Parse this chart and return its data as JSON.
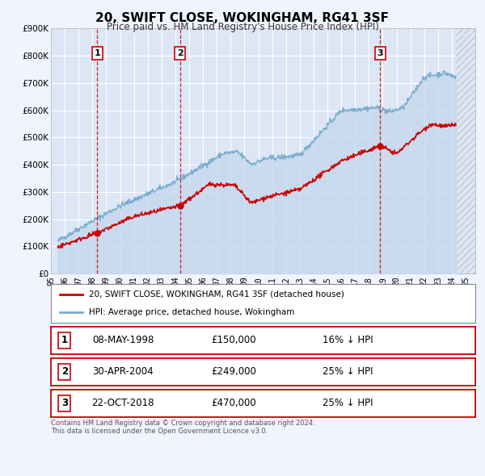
{
  "title": "20, SWIFT CLOSE, WOKINGHAM, RG41 3SF",
  "subtitle": "Price paid vs. HM Land Registry's House Price Index (HPI)",
  "ylim": [
    0,
    900000
  ],
  "yticks": [
    0,
    100000,
    200000,
    300000,
    400000,
    500000,
    600000,
    700000,
    800000,
    900000
  ],
  "ytick_labels": [
    "£0",
    "£100K",
    "£200K",
    "£300K",
    "£400K",
    "£500K",
    "£600K",
    "£700K",
    "£800K",
    "£900K"
  ],
  "xlim_start": 1995.3,
  "xlim_end": 2025.7,
  "xticks": [
    1995,
    1996,
    1997,
    1998,
    1999,
    2000,
    2001,
    2002,
    2003,
    2004,
    2005,
    2006,
    2007,
    2008,
    2009,
    2010,
    2011,
    2012,
    2013,
    2014,
    2015,
    2016,
    2017,
    2018,
    2019,
    2020,
    2021,
    2022,
    2023,
    2024,
    2025
  ],
  "xtick_labels": [
    "95",
    "96",
    "97",
    "98",
    "99",
    "00",
    "01",
    "02",
    "03",
    "04",
    "05",
    "06",
    "07",
    "08",
    "09",
    "10",
    "11",
    "12",
    "13",
    "14",
    "15",
    "16",
    "17",
    "18",
    "19",
    "20",
    "21",
    "22",
    "23",
    "24",
    "25"
  ],
  "background_color": "#f0f4ff",
  "plot_bg_color": "#dce6f5",
  "grid_color": "#ffffff",
  "red_line_color": "#cc0000",
  "blue_line_color": "#7aabcc",
  "blue_fill_color": "#c5d8ee",
  "hatch_color": "#c0c8d8",
  "sale_points": [
    {
      "year": 1998.36,
      "price": 150000,
      "label": "1"
    },
    {
      "year": 2004.33,
      "price": 249000,
      "label": "2"
    },
    {
      "year": 2018.81,
      "price": 470000,
      "label": "3"
    }
  ],
  "table_rows": [
    {
      "num": "1",
      "date": "08-MAY-1998",
      "price": "£150,000",
      "hpi": "16% ↓ HPI"
    },
    {
      "num": "2",
      "date": "30-APR-2004",
      "price": "£249,000",
      "hpi": "25% ↓ HPI"
    },
    {
      "num": "3",
      "date": "22-OCT-2018",
      "price": "£470,000",
      "hpi": "25% ↓ HPI"
    }
  ],
  "legend1_label": "20, SWIFT CLOSE, WOKINGHAM, RG41 3SF (detached house)",
  "legend2_label": "HPI: Average price, detached house, Wokingham",
  "footnote": "Contains HM Land Registry data © Crown copyright and database right 2024.\nThis data is licensed under the Open Government Licence v3.0.",
  "data_end_year": 2024.3
}
